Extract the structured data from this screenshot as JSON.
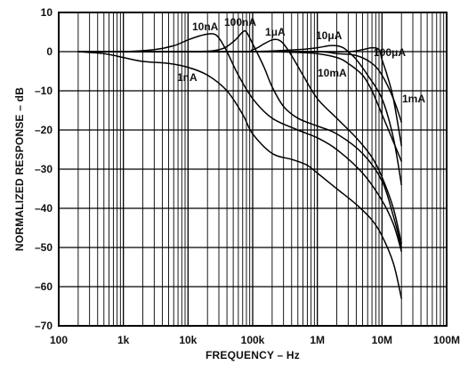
{
  "chart_data": {
    "type": "line",
    "title": "",
    "xlabel": "FREQUENCY – Hz",
    "ylabel": "NORMALIZED RESPONSE – dB",
    "x_scale": "log",
    "xlim": [
      100,
      100000000
    ],
    "ylim": [
      -70,
      10
    ],
    "grid": true,
    "x_tick_labels": [
      "100",
      "1k",
      "10k",
      "100k",
      "1M",
      "10M",
      "100M"
    ],
    "y_ticks": [
      10,
      0,
      -10,
      -20,
      -30,
      -40,
      -50,
      -60,
      -70
    ],
    "y_tick_labels": [
      "10",
      "0",
      "–10",
      "–20",
      "–30",
      "–40",
      "–50",
      "–60",
      "–70"
    ],
    "series": [
      {
        "name": "1nA",
        "x": [
          200,
          500,
          1000,
          2000,
          5000,
          10000,
          20000,
          40000,
          70000,
          100000,
          200000,
          400000,
          700000,
          1000000,
          2000000,
          4000000,
          7000000,
          10000000,
          15000000,
          20000000
        ],
        "y": [
          0,
          -0.5,
          -1.5,
          -2.5,
          -3,
          -4,
          -6,
          -10,
          -16,
          -21,
          -26,
          -27.5,
          -29,
          -31,
          -35,
          -39,
          -43,
          -47,
          -54,
          -63
        ]
      },
      {
        "name": "10nA",
        "x": [
          200,
          1000,
          3000,
          6000,
          10000,
          15000,
          20000,
          25000,
          30000,
          40000,
          60000,
          100000,
          200000,
          500000,
          1000000,
          2000000,
          5000000,
          10000000,
          15000000,
          20000000
        ],
        "y": [
          0,
          0,
          0.5,
          1.5,
          3,
          4,
          4.5,
          4.5,
          3.5,
          0,
          -6,
          -12,
          -17,
          -20,
          -22,
          -25,
          -31,
          -38,
          -44,
          -51
        ]
      },
      {
        "name": "100nA",
        "x": [
          200,
          10000,
          30000,
          50000,
          70000,
          80000,
          100000,
          150000,
          200000,
          300000,
          500000,
          1000000,
          2000000,
          5000000,
          10000000,
          15000000,
          20000000
        ],
        "y": [
          0,
          0,
          0.5,
          2.5,
          5,
          5,
          2,
          -4,
          -9,
          -14,
          -17,
          -19,
          -21,
          -26,
          -33,
          -42,
          -50
        ]
      },
      {
        "name": "1μA",
        "x": [
          200,
          50000,
          100000,
          150000,
          200000,
          250000,
          300000,
          400000,
          600000,
          1000000,
          2000000,
          4000000,
          7000000,
          10000000,
          15000000,
          20000000
        ],
        "y": [
          0,
          0,
          0.5,
          2,
          3,
          3,
          2,
          -1,
          -6,
          -12,
          -17,
          -22,
          -27,
          -32,
          -40,
          -49
        ]
      },
      {
        "name": "10μA",
        "x": [
          200,
          10000,
          100000,
          500000,
          1000000,
          1500000,
          2000000,
          2500000,
          3000000,
          4000000,
          6000000,
          10000000,
          15000000,
          20000000
        ],
        "y": [
          0,
          0,
          0,
          0.5,
          1,
          1.5,
          1.5,
          1,
          0,
          -2,
          -6,
          -12,
          -22,
          -34
        ]
      },
      {
        "name": "10mA",
        "x": [
          200,
          10000,
          100000,
          500000,
          1000000,
          2000000,
          3000000,
          5000000,
          7000000,
          10000000,
          15000000,
          20000000
        ],
        "y": [
          0,
          0,
          0,
          -0.2,
          -0.5,
          -1.5,
          -3,
          -6,
          -10,
          -16,
          -23,
          -28
        ]
      },
      {
        "name": "100μA",
        "x": [
          200,
          10000,
          100000,
          1000000,
          3000000,
          5000000,
          7000000,
          9000000,
          10000000,
          12000000,
          15000000,
          20000000
        ],
        "y": [
          0,
          0,
          0,
          0,
          0,
          0.5,
          1,
          0.5,
          -2,
          -6,
          -12,
          -24
        ]
      },
      {
        "name": "1mA",
        "x": [
          200,
          10000,
          100000,
          1000000,
          2000000,
          4000000,
          7000000,
          10000000,
          15000000,
          20000000
        ],
        "y": [
          0,
          0,
          0,
          0,
          -0.5,
          -1,
          -3,
          -6,
          -12,
          -18
        ]
      }
    ],
    "annotations": [
      "10nA",
      "100nA",
      "1μA",
      "10μA",
      "100μA",
      "1nA",
      "10mA",
      "1mA"
    ]
  }
}
